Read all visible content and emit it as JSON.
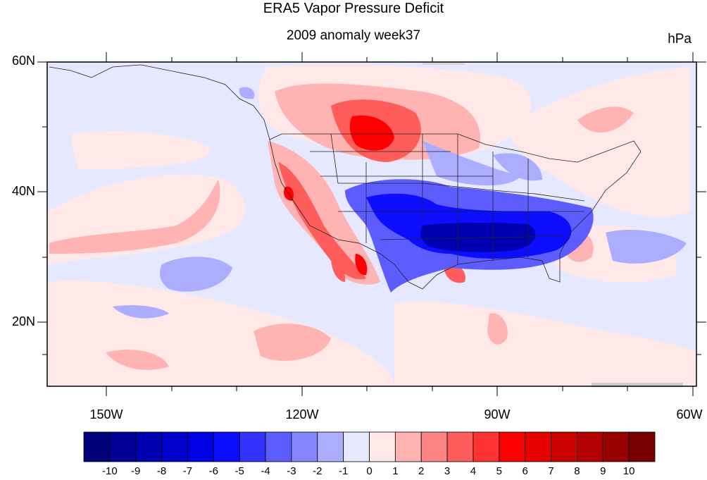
{
  "title": "ERA5 Vapor Pressure Deficit",
  "subtitle": "2009 anomaly week37",
  "units": "hPa",
  "lat_labels": [
    "60N",
    "40N",
    "20N"
  ],
  "lon_labels": [
    "150W",
    "120W",
    "90W",
    "60W"
  ],
  "colorbar": {
    "labels": [
      "-10",
      "-9",
      "-8",
      "-7",
      "-6",
      "-5",
      "-4",
      "-3",
      "-2",
      "-1",
      "0",
      "1",
      "2",
      "3",
      "4",
      "5",
      "6",
      "7",
      "8",
      "9",
      "10"
    ],
    "colors": [
      "#00007a",
      "#000099",
      "#0000b3",
      "#0000cc",
      "#0000e6",
      "#0d0dff",
      "#3333ff",
      "#5c5cff",
      "#8585ff",
      "#adadff",
      "#e5e8ff",
      "#ffe8e8",
      "#ffb3b3",
      "#ff8585",
      "#ff5c5c",
      "#ff3333",
      "#ff0000",
      "#e60000",
      "#cc0000",
      "#b30000",
      "#990000",
      "#7a0000"
    ]
  }
}
